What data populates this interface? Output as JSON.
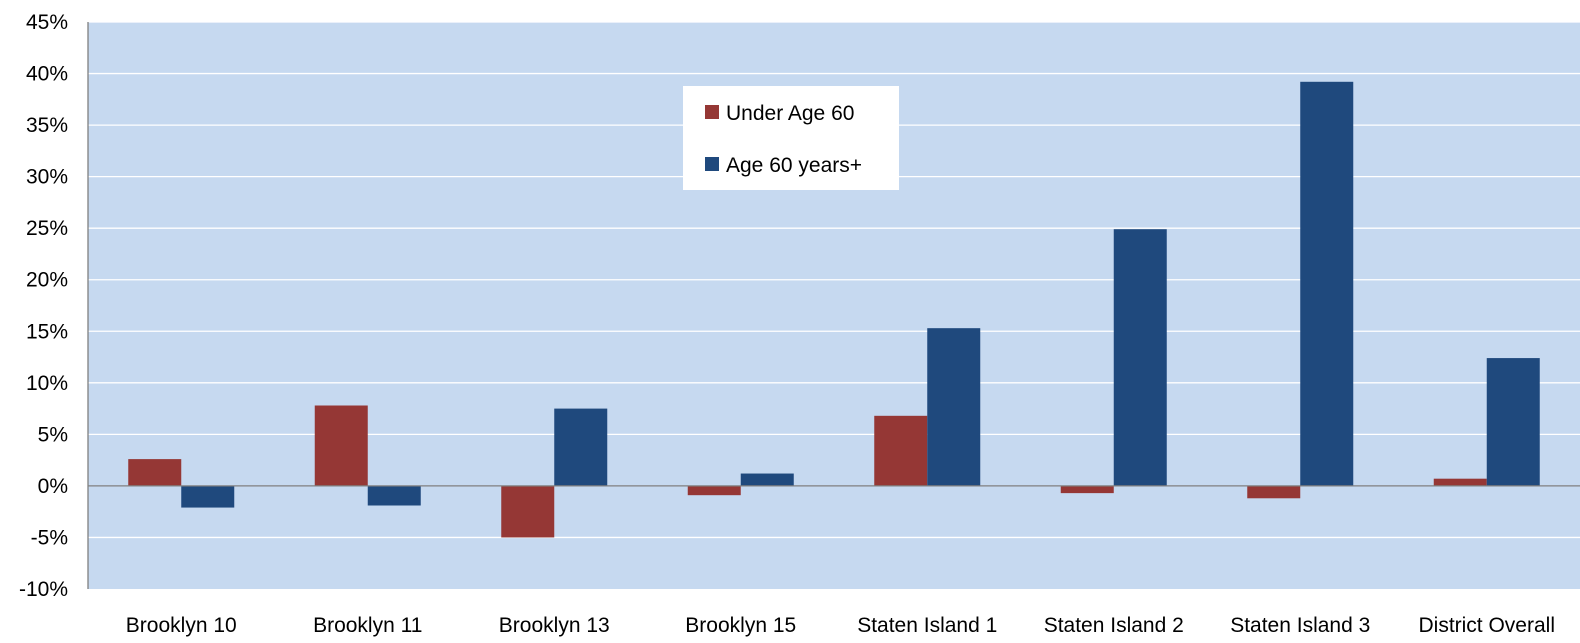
{
  "colors": {
    "plot_background": "#c6d9f0",
    "gridline": "#ffffff",
    "axis_line": "#808080",
    "under_60": "#953735",
    "age_60_plus": "#1f497d",
    "legend_background": "#ffffff"
  },
  "chart_data": {
    "type": "bar",
    "title": "",
    "xlabel": "",
    "ylabel": "",
    "y_unit": "%",
    "ylim": [
      -10,
      45
    ],
    "y_ticks": [
      45,
      40,
      35,
      30,
      25,
      20,
      15,
      10,
      5,
      0,
      -5,
      -10
    ],
    "y_tick_labels": [
      "45%",
      "40%",
      "35%",
      "30%",
      "25%",
      "20%",
      "15%",
      "10%",
      "5%",
      "0%",
      "-5%",
      "-10%"
    ],
    "grid": true,
    "legend_position": "top-center",
    "categories": [
      "Brooklyn 10",
      "Brooklyn 11",
      "Brooklyn 13",
      "Brooklyn 15",
      "Staten Island 1",
      "Staten Island 2",
      "Staten Island 3",
      "District Overall"
    ],
    "series": [
      {
        "name": "Under Age 60",
        "color": "#953735",
        "values": [
          2.6,
          7.8,
          -5.0,
          -0.9,
          6.8,
          -0.7,
          -1.2,
          0.7
        ]
      },
      {
        "name": "Age 60 years+",
        "color": "#1f497d",
        "values": [
          -2.1,
          -1.9,
          7.5,
          1.2,
          15.3,
          24.9,
          39.2,
          12.4
        ]
      }
    ]
  }
}
